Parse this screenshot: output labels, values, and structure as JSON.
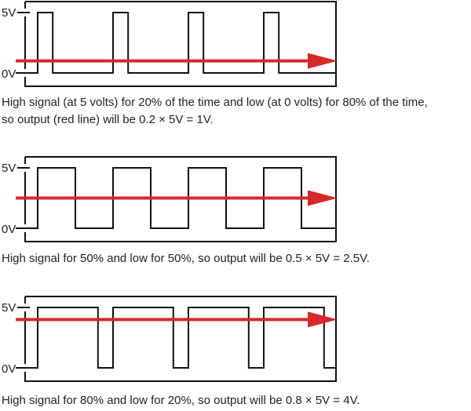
{
  "colors": {
    "signal": "#111111",
    "frame": "#111111",
    "average_line": "#d42a2a"
  },
  "panels": [
    {
      "high_label": "5V",
      "low_label": "0V",
      "duty_cycle": 0.2,
      "cycles": 4,
      "average_fraction": 0.2,
      "caption_lines": [
        "High signal (at 5 volts) for 20% of the time and low (at 0 volts) for 80% of the time,",
        "so output (red line) will be 0.2 × 5V = 1V."
      ]
    },
    {
      "high_label": "5V",
      "low_label": "0V",
      "duty_cycle": 0.5,
      "cycles": 4,
      "average_fraction": 0.5,
      "caption_lines": [
        "High signal for 50% and low for 50%, so output will be 0.5 × 5V = 2.5V."
      ]
    },
    {
      "high_label": "5V",
      "low_label": "0V",
      "duty_cycle": 0.8,
      "cycles": 4,
      "average_fraction": 0.8,
      "caption_lines": [
        "High signal for 80% and low for 20%, so output will be 0.8 × 5V = 4V."
      ]
    }
  ]
}
